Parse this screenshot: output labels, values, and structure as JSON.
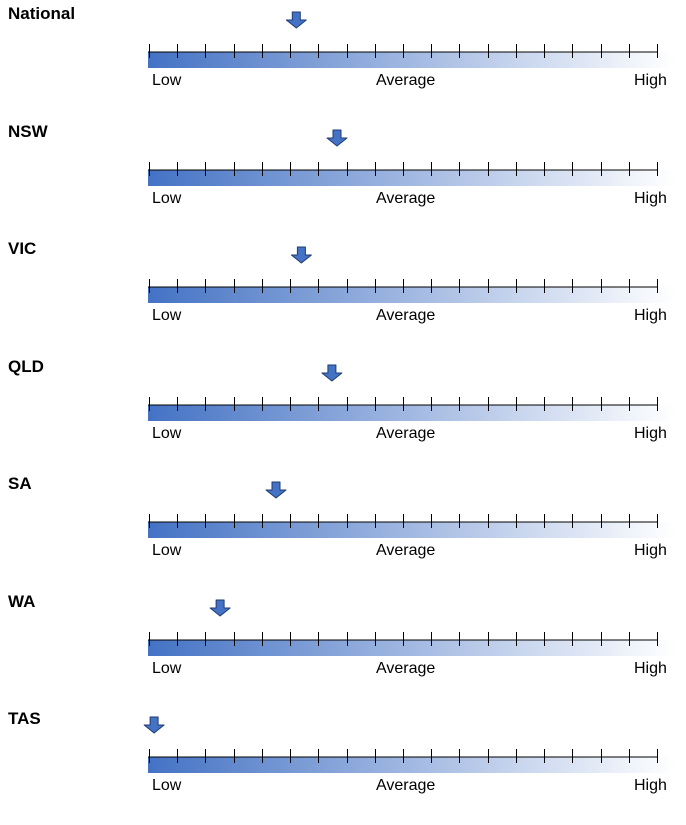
{
  "colors": {
    "bar_start": "#4472c4",
    "bar_end": "#ffffff",
    "arrow_fill": "#4472c4",
    "arrow_stroke": "#1f3b73",
    "tick": "#000000"
  },
  "chart_data": {
    "type": "gauge",
    "scale_labels": {
      "low": "Low",
      "average": "Average",
      "high": "High"
    },
    "scale_range": [
      0,
      1
    ],
    "tick_count": 19,
    "items": [
      {
        "name": "National",
        "value": 0.29
      },
      {
        "name": "NSW",
        "value": 0.37
      },
      {
        "name": "VIC",
        "value": 0.3
      },
      {
        "name": "QLD",
        "value": 0.36
      },
      {
        "name": "SA",
        "value": 0.25
      },
      {
        "name": "WA",
        "value": 0.14
      },
      {
        "name": "TAS",
        "value": 0.01
      }
    ]
  }
}
